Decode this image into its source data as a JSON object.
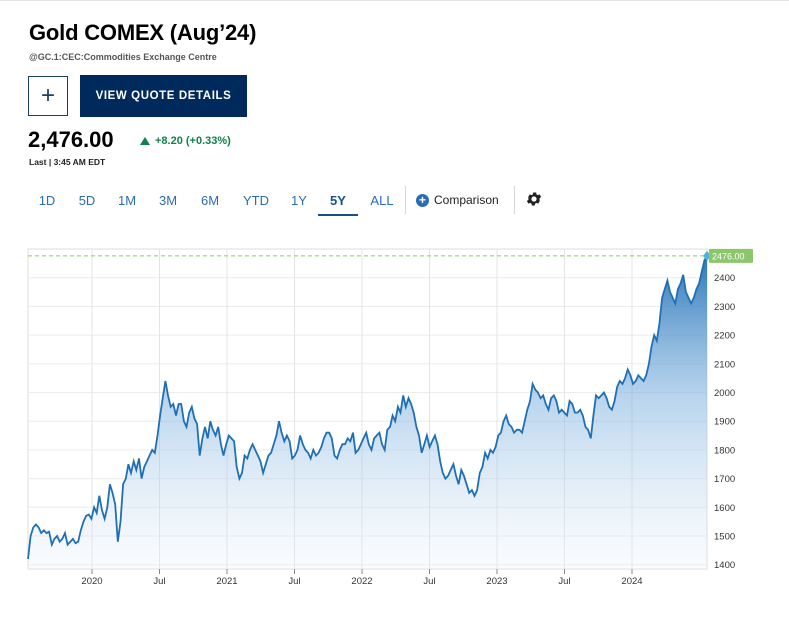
{
  "header": {
    "title": "Gold COMEX (Aug’24)",
    "subtitle": "@GC.1:CEC:Commodities Exchange Centre",
    "add_label": "+",
    "quote_button": "VIEW QUOTE DETAILS"
  },
  "quote": {
    "price": "2,476.00",
    "change": "+8.20 (+0.33%)",
    "last_updated": "Last | 3:45 AM EDT"
  },
  "range_tabs": [
    {
      "label": "1D",
      "active": false
    },
    {
      "label": "5D",
      "active": false
    },
    {
      "label": "1M",
      "active": false
    },
    {
      "label": "3M",
      "active": false
    },
    {
      "label": "6M",
      "active": false
    },
    {
      "label": "YTD",
      "active": false
    },
    {
      "label": "1Y",
      "active": false
    },
    {
      "label": "5Y",
      "active": true
    },
    {
      "label": "ALL",
      "active": false
    }
  ],
  "comparison_label": "Comparison",
  "icons": {
    "add": "plus-icon",
    "comparison": "plus-circle-icon",
    "settings": "gear-icon"
  },
  "colors": {
    "accent": "#2b6cb3",
    "line": "#1f6fb5",
    "up": "#11804a",
    "last_price_tag": "#8cc66a",
    "button": "#002a5c"
  },
  "chart_data": {
    "type": "area",
    "x_tick_labels": [
      "2020",
      "Jul",
      "2021",
      "Jul",
      "2022",
      "Jul",
      "2023",
      "Jul",
      "2024"
    ],
    "y_ticks": [
      1400,
      1500,
      1600,
      1700,
      1800,
      1900,
      2000,
      2100,
      2200,
      2300,
      2400
    ],
    "ylim": [
      1385,
      2500
    ],
    "grid": true,
    "last_value_label": "2476.00",
    "last_value": 2476,
    "series": [
      {
        "values": [
          1420,
          1500,
          1530,
          1540,
          1530,
          1510,
          1520,
          1510,
          1515,
          1470,
          1490,
          1500,
          1480,
          1490,
          1510,
          1470,
          1480,
          1490,
          1475,
          1480,
          1520,
          1550,
          1570,
          1575,
          1560,
          1600,
          1580,
          1640,
          1590,
          1560,
          1600,
          1680,
          1650,
          1610,
          1480,
          1550,
          1680,
          1700,
          1750,
          1720,
          1760,
          1730,
          1770,
          1700,
          1740,
          1760,
          1780,
          1800,
          1790,
          1850,
          1920,
          1980,
          2040,
          1990,
          1950,
          1960,
          1920,
          1960,
          1960,
          1900,
          1880,
          1930,
          1950,
          1910,
          1890,
          1780,
          1840,
          1880,
          1840,
          1900,
          1870,
          1850,
          1880,
          1820,
          1780,
          1820,
          1850,
          1840,
          1830,
          1740,
          1700,
          1720,
          1780,
          1770,
          1800,
          1820,
          1800,
          1780,
          1760,
          1720,
          1750,
          1780,
          1790,
          1820,
          1850,
          1900,
          1860,
          1830,
          1850,
          1830,
          1770,
          1780,
          1800,
          1850,
          1820,
          1800,
          1790,
          1770,
          1800,
          1780,
          1790,
          1810,
          1840,
          1860,
          1860,
          1840,
          1780,
          1770,
          1800,
          1820,
          1820,
          1840,
          1830,
          1860,
          1790,
          1800,
          1820,
          1840,
          1860,
          1820,
          1800,
          1840,
          1850,
          1860,
          1820,
          1800,
          1870,
          1880,
          1920,
          1900,
          1950,
          1930,
          1990,
          1950,
          1980,
          1960,
          1930,
          1880,
          1850,
          1790,
          1820,
          1850,
          1810,
          1830,
          1850,
          1820,
          1760,
          1720,
          1700,
          1710,
          1730,
          1750,
          1710,
          1680,
          1730,
          1710,
          1680,
          1650,
          1660,
          1640,
          1660,
          1720,
          1740,
          1790,
          1770,
          1800,
          1790,
          1810,
          1850,
          1860,
          1900,
          1920,
          1890,
          1880,
          1860,
          1870,
          1870,
          1860,
          1900,
          1940,
          1970,
          2030,
          2010,
          2000,
          1980,
          1990,
          1960,
          1940,
          1980,
          1990,
          1970,
          1930,
          1940,
          1930,
          1920,
          1970,
          1960,
          1930,
          1930,
          1940,
          1920,
          1880,
          1870,
          1840,
          1920,
          1990,
          1980,
          1990,
          2000,
          1980,
          1950,
          1940,
          1970,
          2020,
          2040,
          2030,
          2050,
          2080,
          2060,
          2030,
          2040,
          2060,
          2050,
          2040,
          2060,
          2100,
          2160,
          2200,
          2180,
          2240,
          2330,
          2360,
          2390,
          2350,
          2330,
          2310,
          2360,
          2380,
          2410,
          2350,
          2330,
          2310,
          2330,
          2360,
          2380,
          2420,
          2460,
          2476
        ]
      }
    ]
  }
}
